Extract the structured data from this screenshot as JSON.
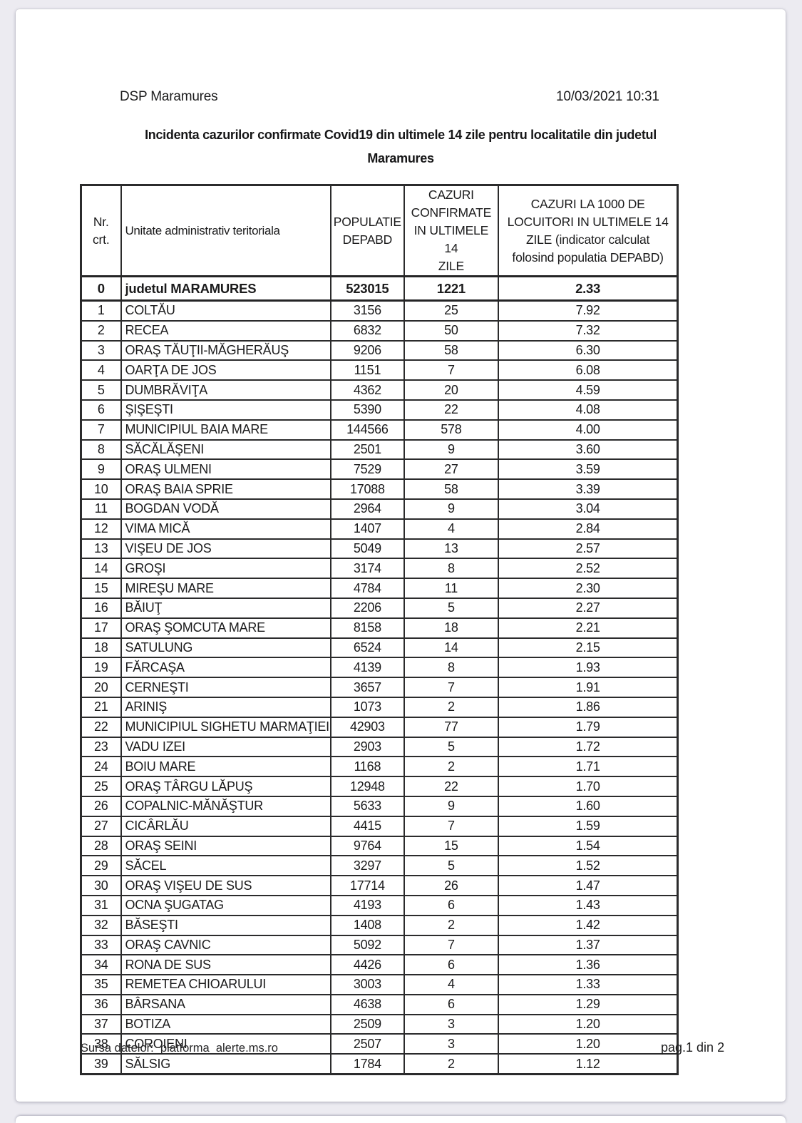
{
  "document": {
    "header_left": "DSP Maramures",
    "header_right": "10/03/2021 10:31",
    "title": "Incidenta cazurilor confirmate Covid19 din ultimele 14 zile pentru localitatile din judetul\nMaramures",
    "footer_left": "Sursa datelor:  platforma  alerte.ms.ro",
    "footer_right": "pag.1 din 2"
  },
  "table": {
    "columns": [
      "Nr.\ncrt.",
      "Unitate administrativ teritoriala",
      "POPULATIE\nDEPABD",
      "CAZURI\nCONFIRMATE\nIN ULTIMELE 14\nZILE",
      "CAZURI LA 1000 DE\nLOCUITORI IN ULTIMELE 14\nZILE (indicator calculat\nfolosind populatia DEPABD)"
    ],
    "total_row": {
      "nr": "0",
      "name": "judetul MARAMURES",
      "populatie": "523015",
      "cazuri": "1221",
      "incidenta": "2.33"
    },
    "rows": [
      [
        "1",
        "COLTĂU",
        "3156",
        "25",
        "7.92"
      ],
      [
        "2",
        "RECEA",
        "6832",
        "50",
        "7.32"
      ],
      [
        "3",
        "ORAŞ TĂUŢII-MĂGHERĂUŞ",
        "9206",
        "58",
        "6.30"
      ],
      [
        "4",
        "OARŢA DE JOS",
        "1151",
        "7",
        "6.08"
      ],
      [
        "5",
        "DUMBRĂVIŢA",
        "4362",
        "20",
        "4.59"
      ],
      [
        "6",
        "ŞIŞEŞTI",
        "5390",
        "22",
        "4.08"
      ],
      [
        "7",
        "MUNICIPIUL BAIA MARE",
        "144566",
        "578",
        "4.00"
      ],
      [
        "8",
        "SĂCĂLĂŞENI",
        "2501",
        "9",
        "3.60"
      ],
      [
        "9",
        "ORAŞ ULMENI",
        "7529",
        "27",
        "3.59"
      ],
      [
        "10",
        "ORAŞ BAIA SPRIE",
        "17088",
        "58",
        "3.39"
      ],
      [
        "11",
        "BOGDAN VODĂ",
        "2964",
        "9",
        "3.04"
      ],
      [
        "12",
        "VIMA MICĂ",
        "1407",
        "4",
        "2.84"
      ],
      [
        "13",
        "VIŞEU DE JOS",
        "5049",
        "13",
        "2.57"
      ],
      [
        "14",
        "GROŞI",
        "3174",
        "8",
        "2.52"
      ],
      [
        "15",
        "MIREŞU MARE",
        "4784",
        "11",
        "2.30"
      ],
      [
        "16",
        "BĂIUŢ",
        "2206",
        "5",
        "2.27"
      ],
      [
        "17",
        "ORAŞ ŞOMCUTA MARE",
        "8158",
        "18",
        "2.21"
      ],
      [
        "18",
        "SATULUNG",
        "6524",
        "14",
        "2.15"
      ],
      [
        "19",
        "FĂRCAŞA",
        "4139",
        "8",
        "1.93"
      ],
      [
        "20",
        "CERNEŞTI",
        "3657",
        "7",
        "1.91"
      ],
      [
        "21",
        "ARINIŞ",
        "1073",
        "2",
        "1.86"
      ],
      [
        "22",
        "MUNICIPIUL SIGHETU MARMAŢIEI",
        "42903",
        "77",
        "1.79"
      ],
      [
        "23",
        "VADU IZEI",
        "2903",
        "5",
        "1.72"
      ],
      [
        "24",
        "BOIU MARE",
        "1168",
        "2",
        "1.71"
      ],
      [
        "25",
        "ORAŞ TÂRGU LĂPUŞ",
        "12948",
        "22",
        "1.70"
      ],
      [
        "26",
        "COPALNIC-MĂNĂŞTUR",
        "5633",
        "9",
        "1.60"
      ],
      [
        "27",
        "CICÂRLĂU",
        "4415",
        "7",
        "1.59"
      ],
      [
        "28",
        "ORAŞ SEINI",
        "9764",
        "15",
        "1.54"
      ],
      [
        "29",
        "SĂCEL",
        "3297",
        "5",
        "1.52"
      ],
      [
        "30",
        "ORAŞ VIŞEU DE SUS",
        "17714",
        "26",
        "1.47"
      ],
      [
        "31",
        "OCNA ŞUGATAG",
        "4193",
        "6",
        "1.43"
      ],
      [
        "32",
        "BĂSEŞTI",
        "1408",
        "2",
        "1.42"
      ],
      [
        "33",
        "ORAŞ CAVNIC",
        "5092",
        "7",
        "1.37"
      ],
      [
        "34",
        "RONA DE SUS",
        "4426",
        "6",
        "1.36"
      ],
      [
        "35",
        "REMETEA CHIOARULUI",
        "3003",
        "4",
        "1.33"
      ],
      [
        "36",
        "BÂRSANA",
        "4638",
        "6",
        "1.29"
      ],
      [
        "37",
        "BOTIZA",
        "2509",
        "3",
        "1.20"
      ],
      [
        "38",
        "COROIENI",
        "2507",
        "3",
        "1.20"
      ],
      [
        "39",
        "SĂLSIG",
        "1784",
        "2",
        "1.12"
      ]
    ]
  },
  "colors": {
    "canvas_bg": "#ecebf1",
    "page_bg": "#ffffff",
    "border": "#2b2b2c",
    "text": "#1b1b1c"
  }
}
